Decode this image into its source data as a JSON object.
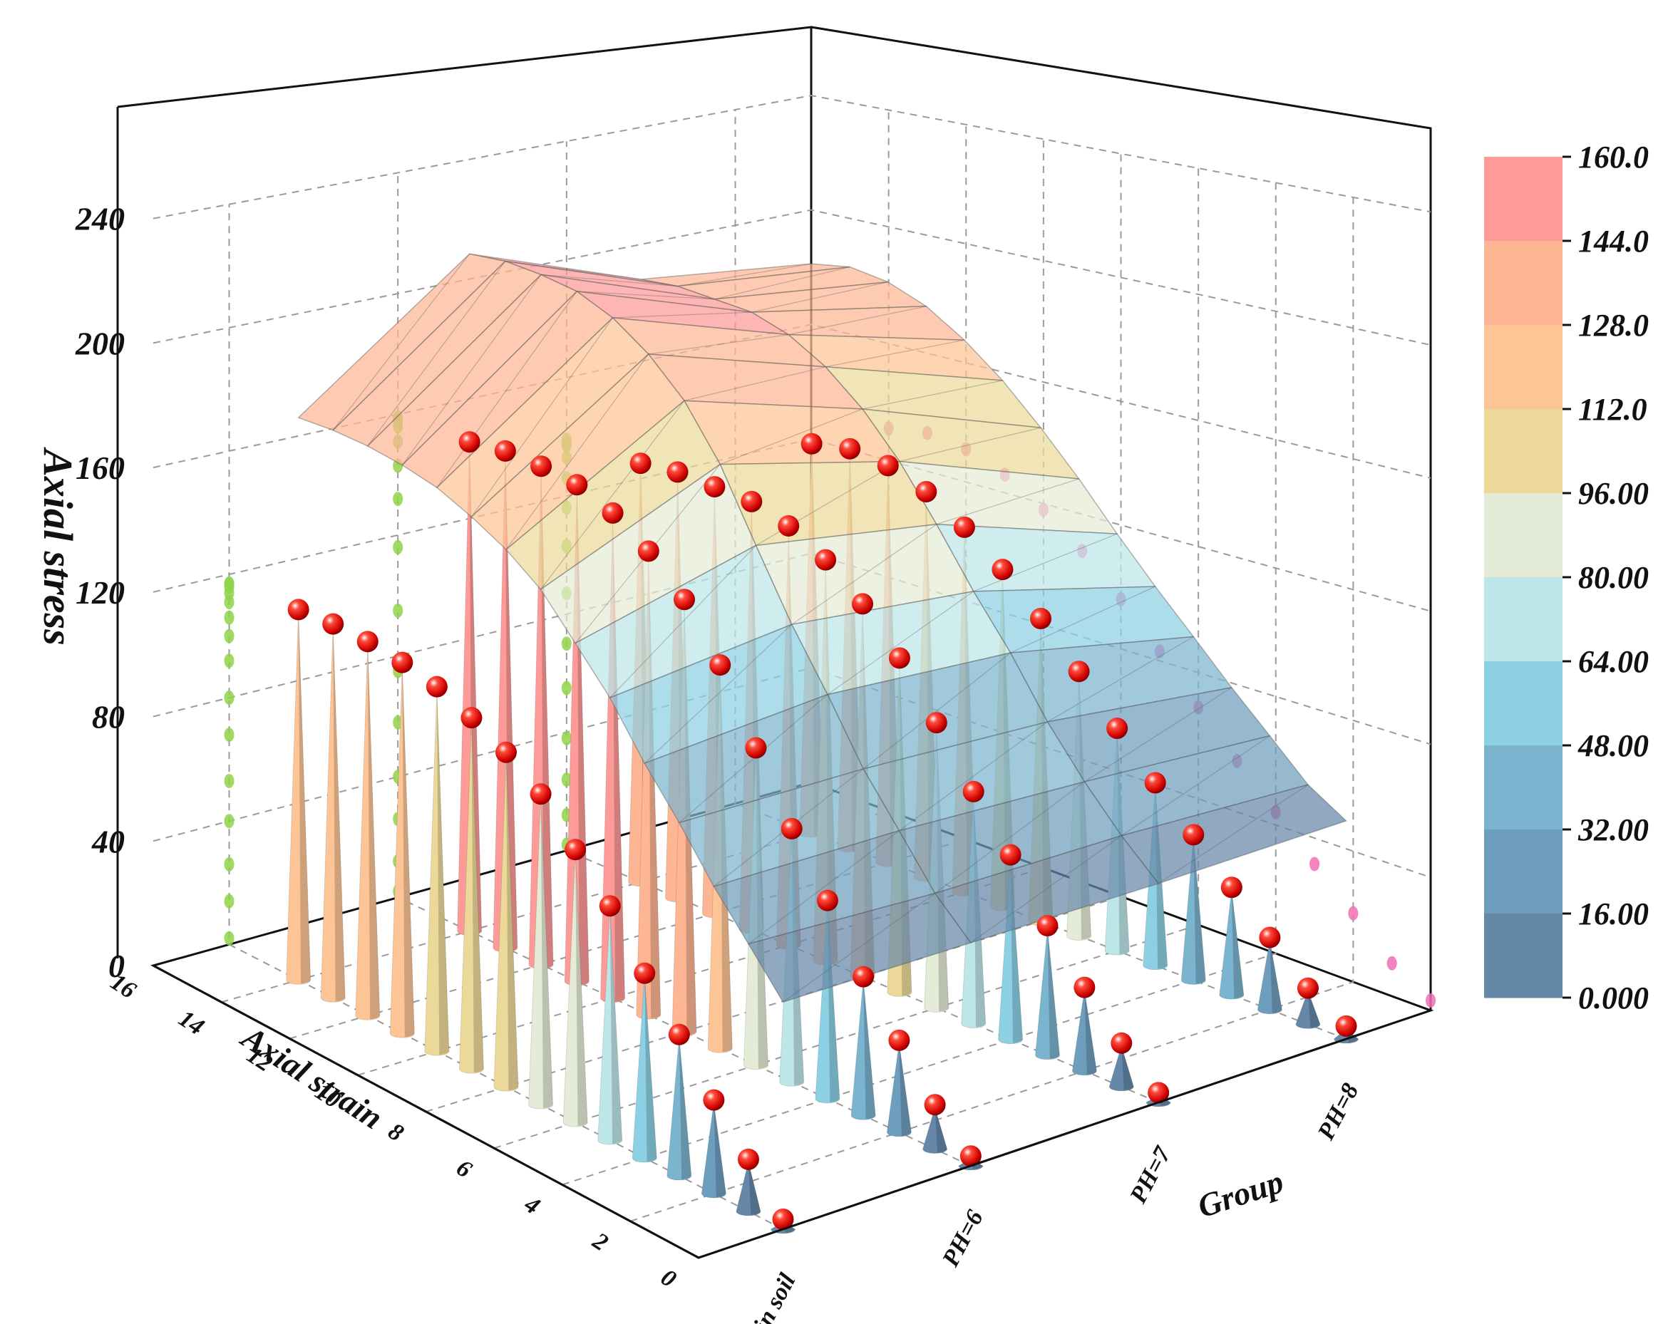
{
  "chart_data": {
    "type": "3d-surface-with-drop-cones",
    "title": "",
    "zlabel": "Axial stress",
    "xlabel": "Axial strain",
    "ylabel": "Group",
    "zlim": [
      0,
      240
    ],
    "z_ticks": [
      "240",
      "200",
      "160",
      "120",
      "80",
      "40",
      "0"
    ],
    "x_ticks": [
      "16",
      "14",
      "12",
      "10",
      "8",
      "6",
      "4",
      "2",
      "0"
    ],
    "groups": [
      "Plain soil",
      "PH=6",
      "PH=7",
      "PH=8"
    ],
    "x": [
      0,
      1,
      2,
      3,
      4,
      5,
      6,
      7,
      8,
      9,
      10,
      11,
      12,
      13,
      14
    ],
    "series": [
      {
        "name": "Plain soil",
        "values": [
          2,
          14,
          26,
          40,
          53,
          68,
          80,
          92,
          100,
          106,
          111,
          114,
          116,
          117,
          117
        ]
      },
      {
        "name": "PH=6",
        "values": [
          2,
          12,
          26,
          40,
          58,
          75,
          95,
          116,
          132,
          143,
          151,
          156,
          158,
          159,
          158
        ]
      },
      {
        "name": "PH=7",
        "values": [
          2,
          12,
          24,
          38,
          55,
          70,
          87,
          103,
          116,
          126,
          133,
          137,
          138,
          139,
          138
        ]
      },
      {
        "name": "PH=8",
        "values": [
          3,
          10,
          21,
          32,
          44,
          56,
          69,
          83,
          96,
          108,
          118,
          126,
          131,
          133,
          131
        ]
      }
    ],
    "colorbar": {
      "ticks": [
        "160.0",
        "144.0",
        "128.0",
        "112.0",
        "96.00",
        "80.00",
        "64.00",
        "48.00",
        "32.00",
        "16.00",
        "0.000"
      ],
      "colors": [
        "#fe9a98",
        "#fdb593",
        "#fdc596",
        "#ecd99a",
        "#e4ebd6",
        "#bde6e8",
        "#8dd0e3",
        "#7bb4cf",
        "#6e9ebd",
        "#6588a8"
      ]
    }
  }
}
